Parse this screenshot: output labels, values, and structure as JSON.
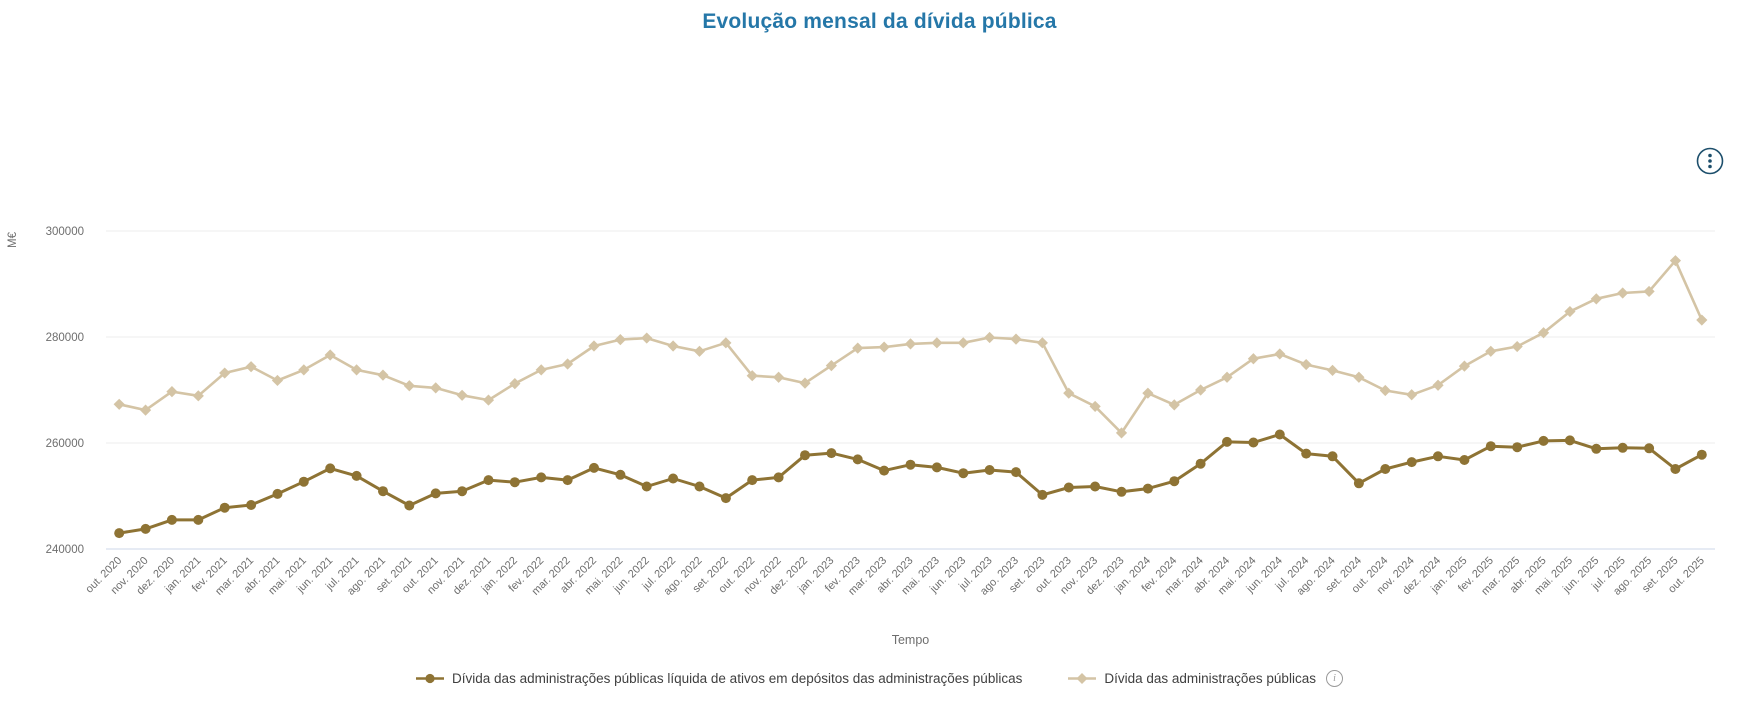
{
  "header": {
    "title": "Evolução mensal da dívida pública"
  },
  "toolbar": {
    "options_icon": "kebab-vertical-in-circle"
  },
  "colors": {
    "title": "#2577a8",
    "axis_text": "#6e6e6e",
    "gridline": "#ececec",
    "axis_line": "#ccd7ea",
    "kebab": "#1d4f6c",
    "legend_text": "#404040",
    "series_net": "#8e7334",
    "series_gross": "#d4c4a5"
  },
  "chart_data": {
    "type": "line",
    "title": "Evolução mensal da dívida pública",
    "xlabel": "Tempo",
    "ylabel": "M€",
    "yticks": [
      240000,
      260000,
      280000,
      300000
    ],
    "ylim": [
      240000,
      310000
    ],
    "grid": true,
    "legend_position": "bottom",
    "x": [
      "out. 2020",
      "nov. 2020",
      "dez. 2020",
      "jan. 2021",
      "fev. 2021",
      "mar. 2021",
      "abr. 2021",
      "mai. 2021",
      "jun. 2021",
      "jul. 2021",
      "ago. 2021",
      "set. 2021",
      "out. 2021",
      "nov. 2021",
      "dez. 2021",
      "jan. 2022",
      "fev. 2022",
      "mar. 2022",
      "abr. 2022",
      "mai. 2022",
      "jun. 2022",
      "jul. 2022",
      "ago. 2022",
      "set. 2022",
      "out. 2022",
      "nov. 2022",
      "dez. 2022",
      "jan. 2023",
      "fev. 2023",
      "mar. 2023",
      "abr. 2023",
      "mai. 2023",
      "jun. 2023",
      "jul. 2023",
      "ago. 2023",
      "set. 2023",
      "out. 2023",
      "nov. 2023",
      "dez. 2023",
      "jan. 2024",
      "fev. 2024",
      "mar. 2024",
      "abr. 2024",
      "mai. 2024",
      "jun. 2024",
      "jul. 2024",
      "ago. 2024",
      "set. 2024",
      "out. 2024",
      "nov. 2024",
      "dez. 2024",
      "jan. 2025",
      "fev. 2025",
      "mar. 2025",
      "abr. 2025",
      "mai. 2025",
      "jun. 2025",
      "jul. 2025",
      "ago. 2025",
      "set. 2025",
      "out. 2025"
    ],
    "series": [
      {
        "name": "Dívida das administrações públicas líquida de ativos em depósitos das administrações públicas",
        "marker": "circle",
        "color": "#8e7334",
        "values": [
          243000,
          243800,
          245500,
          245500,
          247800,
          248300,
          250400,
          252700,
          255200,
          253800,
          250900,
          248200,
          250500,
          250900,
          253000,
          252600,
          253500,
          253000,
          255300,
          254000,
          251800,
          253300,
          251800,
          249600,
          253000,
          253500,
          257700,
          258100,
          256900,
          254800,
          255900,
          255400,
          254300,
          254900,
          254500,
          250200,
          251600,
          251800,
          250800,
          251400,
          252800,
          256100,
          260200,
          260100,
          261600,
          258000,
          257500,
          252400,
          255100,
          256400,
          257500,
          256800,
          259400,
          259200,
          260400,
          260500,
          258900,
          259100,
          259000,
          255100,
          257800
        ]
      },
      {
        "name": "Dívida das administrações públicas",
        "marker": "diamond",
        "color": "#d4c4a5",
        "has_info_icon": true,
        "values": [
          267300,
          266200,
          269700,
          268900,
          273200,
          274400,
          271800,
          273800,
          276600,
          273800,
          272800,
          270800,
          270400,
          269000,
          268100,
          271200,
          273800,
          274900,
          278300,
          279500,
          279800,
          278300,
          277300,
          278900,
          272700,
          272400,
          271300,
          274600,
          277900,
          278100,
          278700,
          278900,
          278900,
          279900,
          279600,
          278900,
          269400,
          266900,
          261900,
          269400,
          267200,
          270000,
          272400,
          275900,
          276800,
          274800,
          273700,
          272400,
          269900,
          269100,
          270900,
          274500,
          277300,
          278200,
          280800,
          284800,
          287200,
          288300,
          288600,
          294400,
          283200
        ]
      }
    ]
  }
}
